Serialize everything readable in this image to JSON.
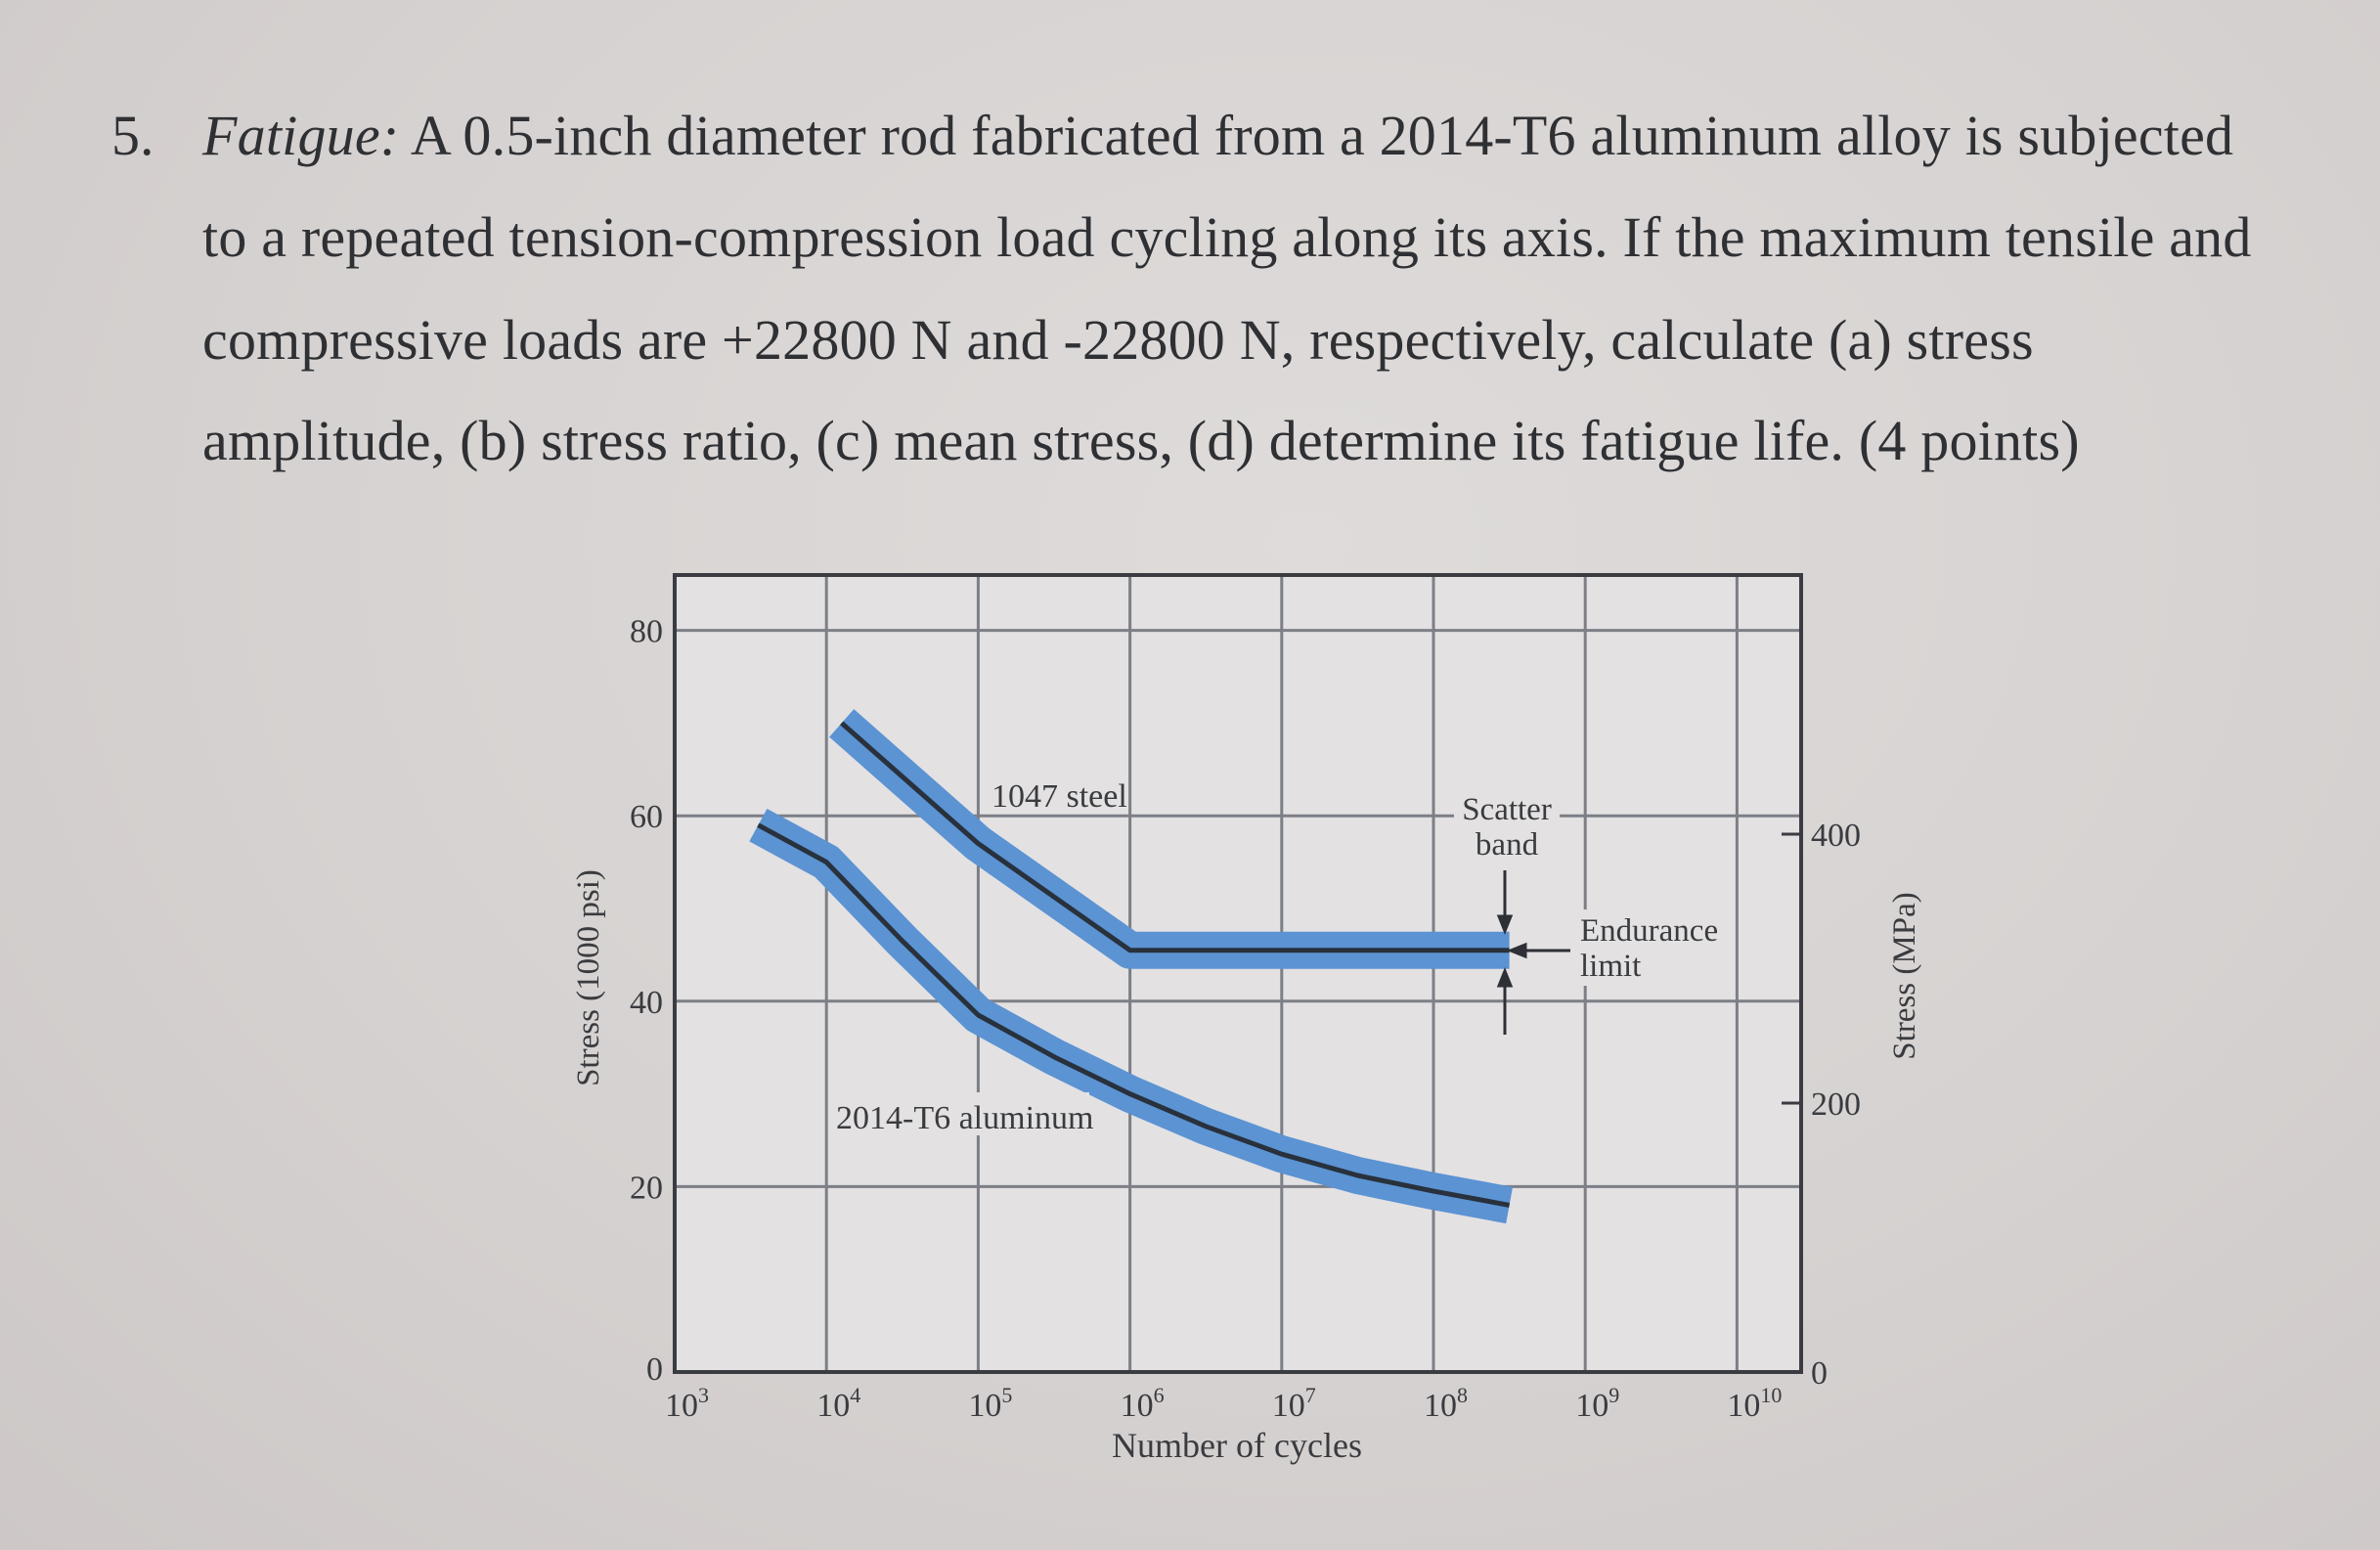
{
  "problem": {
    "number": "5.",
    "lead": "Fatigue:",
    "lines": [
      " A 0.5-inch diameter rod fabricated from a 2014-T6 aluminum alloy is subjected",
      "to a repeated tension-compression load cycling along its axis. If the maximum tensile and",
      "compressive loads are +22800 N and -22800 N, respectively, calculate (a) stress",
      "amplitude, (b) stress ratio, (c) mean stress, (d) determine its fatigue life. (4 points)"
    ]
  },
  "chart_data": {
    "type": "line",
    "title": "",
    "xlabel": "Number of cycles",
    "ylabel": "Stress (1000 psi)",
    "ylabel_right": "Stress (MPa)",
    "xscale": "log",
    "xlim": [
      1000,
      10000000000
    ],
    "ylim": [
      0,
      85
    ],
    "grid": true,
    "x_ticks": [
      {
        "base": "10",
        "exp": "3",
        "log": 3
      },
      {
        "base": "10",
        "exp": "4",
        "log": 4
      },
      {
        "base": "10",
        "exp": "5",
        "log": 5
      },
      {
        "base": "10",
        "exp": "6",
        "log": 6
      },
      {
        "base": "10",
        "exp": "7",
        "log": 7
      },
      {
        "base": "10",
        "exp": "8",
        "log": 8
      },
      {
        "base": "10",
        "exp": "9",
        "log": 9
      },
      {
        "base": "10",
        "exp": "10",
        "log": 10
      }
    ],
    "y_ticks": [
      "0",
      "20",
      "40",
      "60",
      "80"
    ],
    "y_ticks_right": [
      {
        "label": "0",
        "mpa": 0
      },
      {
        "label": "200",
        "mpa": 200
      },
      {
        "label": "400",
        "mpa": 400
      }
    ],
    "series": [
      {
        "name": "1047 steel",
        "color": "#5b93d3",
        "center_color": "#28313c",
        "points_log10N_ksi": [
          [
            4.1,
            70
          ],
          [
            5.0,
            57
          ],
          [
            6.0,
            45.5
          ],
          [
            8.5,
            45.5
          ]
        ]
      },
      {
        "name": "2014-T6 aluminum",
        "color": "#5b93d3",
        "center_color": "#28313c",
        "points_log10N_ksi": [
          [
            3.55,
            59
          ],
          [
            4.0,
            55
          ],
          [
            4.5,
            46.5
          ],
          [
            5.0,
            38.5
          ],
          [
            5.5,
            34
          ],
          [
            6.0,
            30
          ],
          [
            6.5,
            26.5
          ],
          [
            7.0,
            23.5
          ],
          [
            7.5,
            21.2
          ],
          [
            8.0,
            19.5
          ],
          [
            8.5,
            18
          ]
        ]
      }
    ],
    "annotations": [
      {
        "text": "1047 steel"
      },
      {
        "text": "2014-T6 aluminum"
      },
      {
        "text": [
          "Scatter",
          "band"
        ]
      },
      {
        "text": [
          "Endurance",
          "limit"
        ]
      }
    ]
  },
  "labels": {
    "steel": "1047 steel",
    "aluminum": "2014-T6 aluminum",
    "scatter1": "Scatter",
    "scatter2": "band",
    "endurance1": "Endurance",
    "endurance2": "limit"
  },
  "colors": {
    "band": "#5b93d3",
    "center": "#28313c",
    "grid": "#7d7f86",
    "axis": "#3b3c42",
    "plot_bg": "#e4e2e3"
  }
}
